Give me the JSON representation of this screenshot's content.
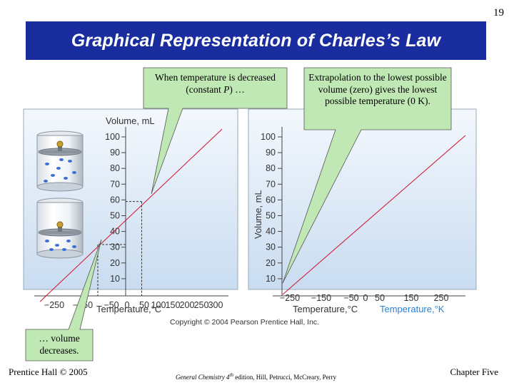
{
  "slide_number": "19",
  "title": "Graphical Representation of Charles’s Law",
  "callouts": {
    "temperature_decreased_prefix": "When temperature is decreased (constant ",
    "temperature_decreased_var": "P",
    "temperature_decreased_suffix": ") …",
    "extrapolation": "Extrapolation to the lowest possible volume (zero) gives the lowest possible temperature (0 K).",
    "volume_decreases": "… volume decreases."
  },
  "figure": {
    "copyright": "Copyright © 2004 Pearson Prentice Hall, Inc."
  },
  "footer": {
    "left": "Prentice Hall © 2005",
    "center_italic": "General Chemistry 4",
    "center_sup": "th",
    "center_rest": " edition, Hill, Petrucci, McCreary, Perry",
    "right": "Chapter Five"
  },
  "colors": {
    "title_bar": "#1a2d9e",
    "callout_fill": "#bfe8b4",
    "line": "#d01030",
    "kelvin_label": "#2a7fd4",
    "panel_gradient_top": "#f4f8fd",
    "panel_gradient_bottom": "#c9dcf0"
  },
  "chart_data": [
    {
      "type": "line",
      "title": "",
      "ylabel": "Volume, mL",
      "xlabel": "Temperature,°C",
      "yticks": [
        10,
        20,
        30,
        40,
        50,
        60,
        70,
        80,
        90,
        100
      ],
      "xtick_labels": [
        "−250",
        "−150",
        "−50",
        "0",
        "50",
        "100",
        "150",
        "200",
        "250",
        "300"
      ],
      "series": [
        {
          "x": [
            -273,
            300
          ],
          "y": [
            0,
            104.9
          ]
        }
      ],
      "marked_points": [
        {
          "x": 50,
          "y": 59
        },
        {
          "x": -100,
          "y": 31.7
        }
      ]
    },
    {
      "type": "line",
      "title": "",
      "ylabel": "Volume, mL",
      "xlabel": "Temperature,°C",
      "xlabel_secondary": "Temperature,°K",
      "yticks": [
        10,
        20,
        30,
        40,
        50,
        60,
        70,
        80,
        90,
        100
      ],
      "xtick_labels": [
        "−250",
        "−150",
        "−50",
        "0",
        "50",
        "150",
        "250"
      ],
      "series": [
        {
          "x": [
            -273,
            300
          ],
          "y": [
            0,
            100
          ]
        }
      ]
    }
  ]
}
